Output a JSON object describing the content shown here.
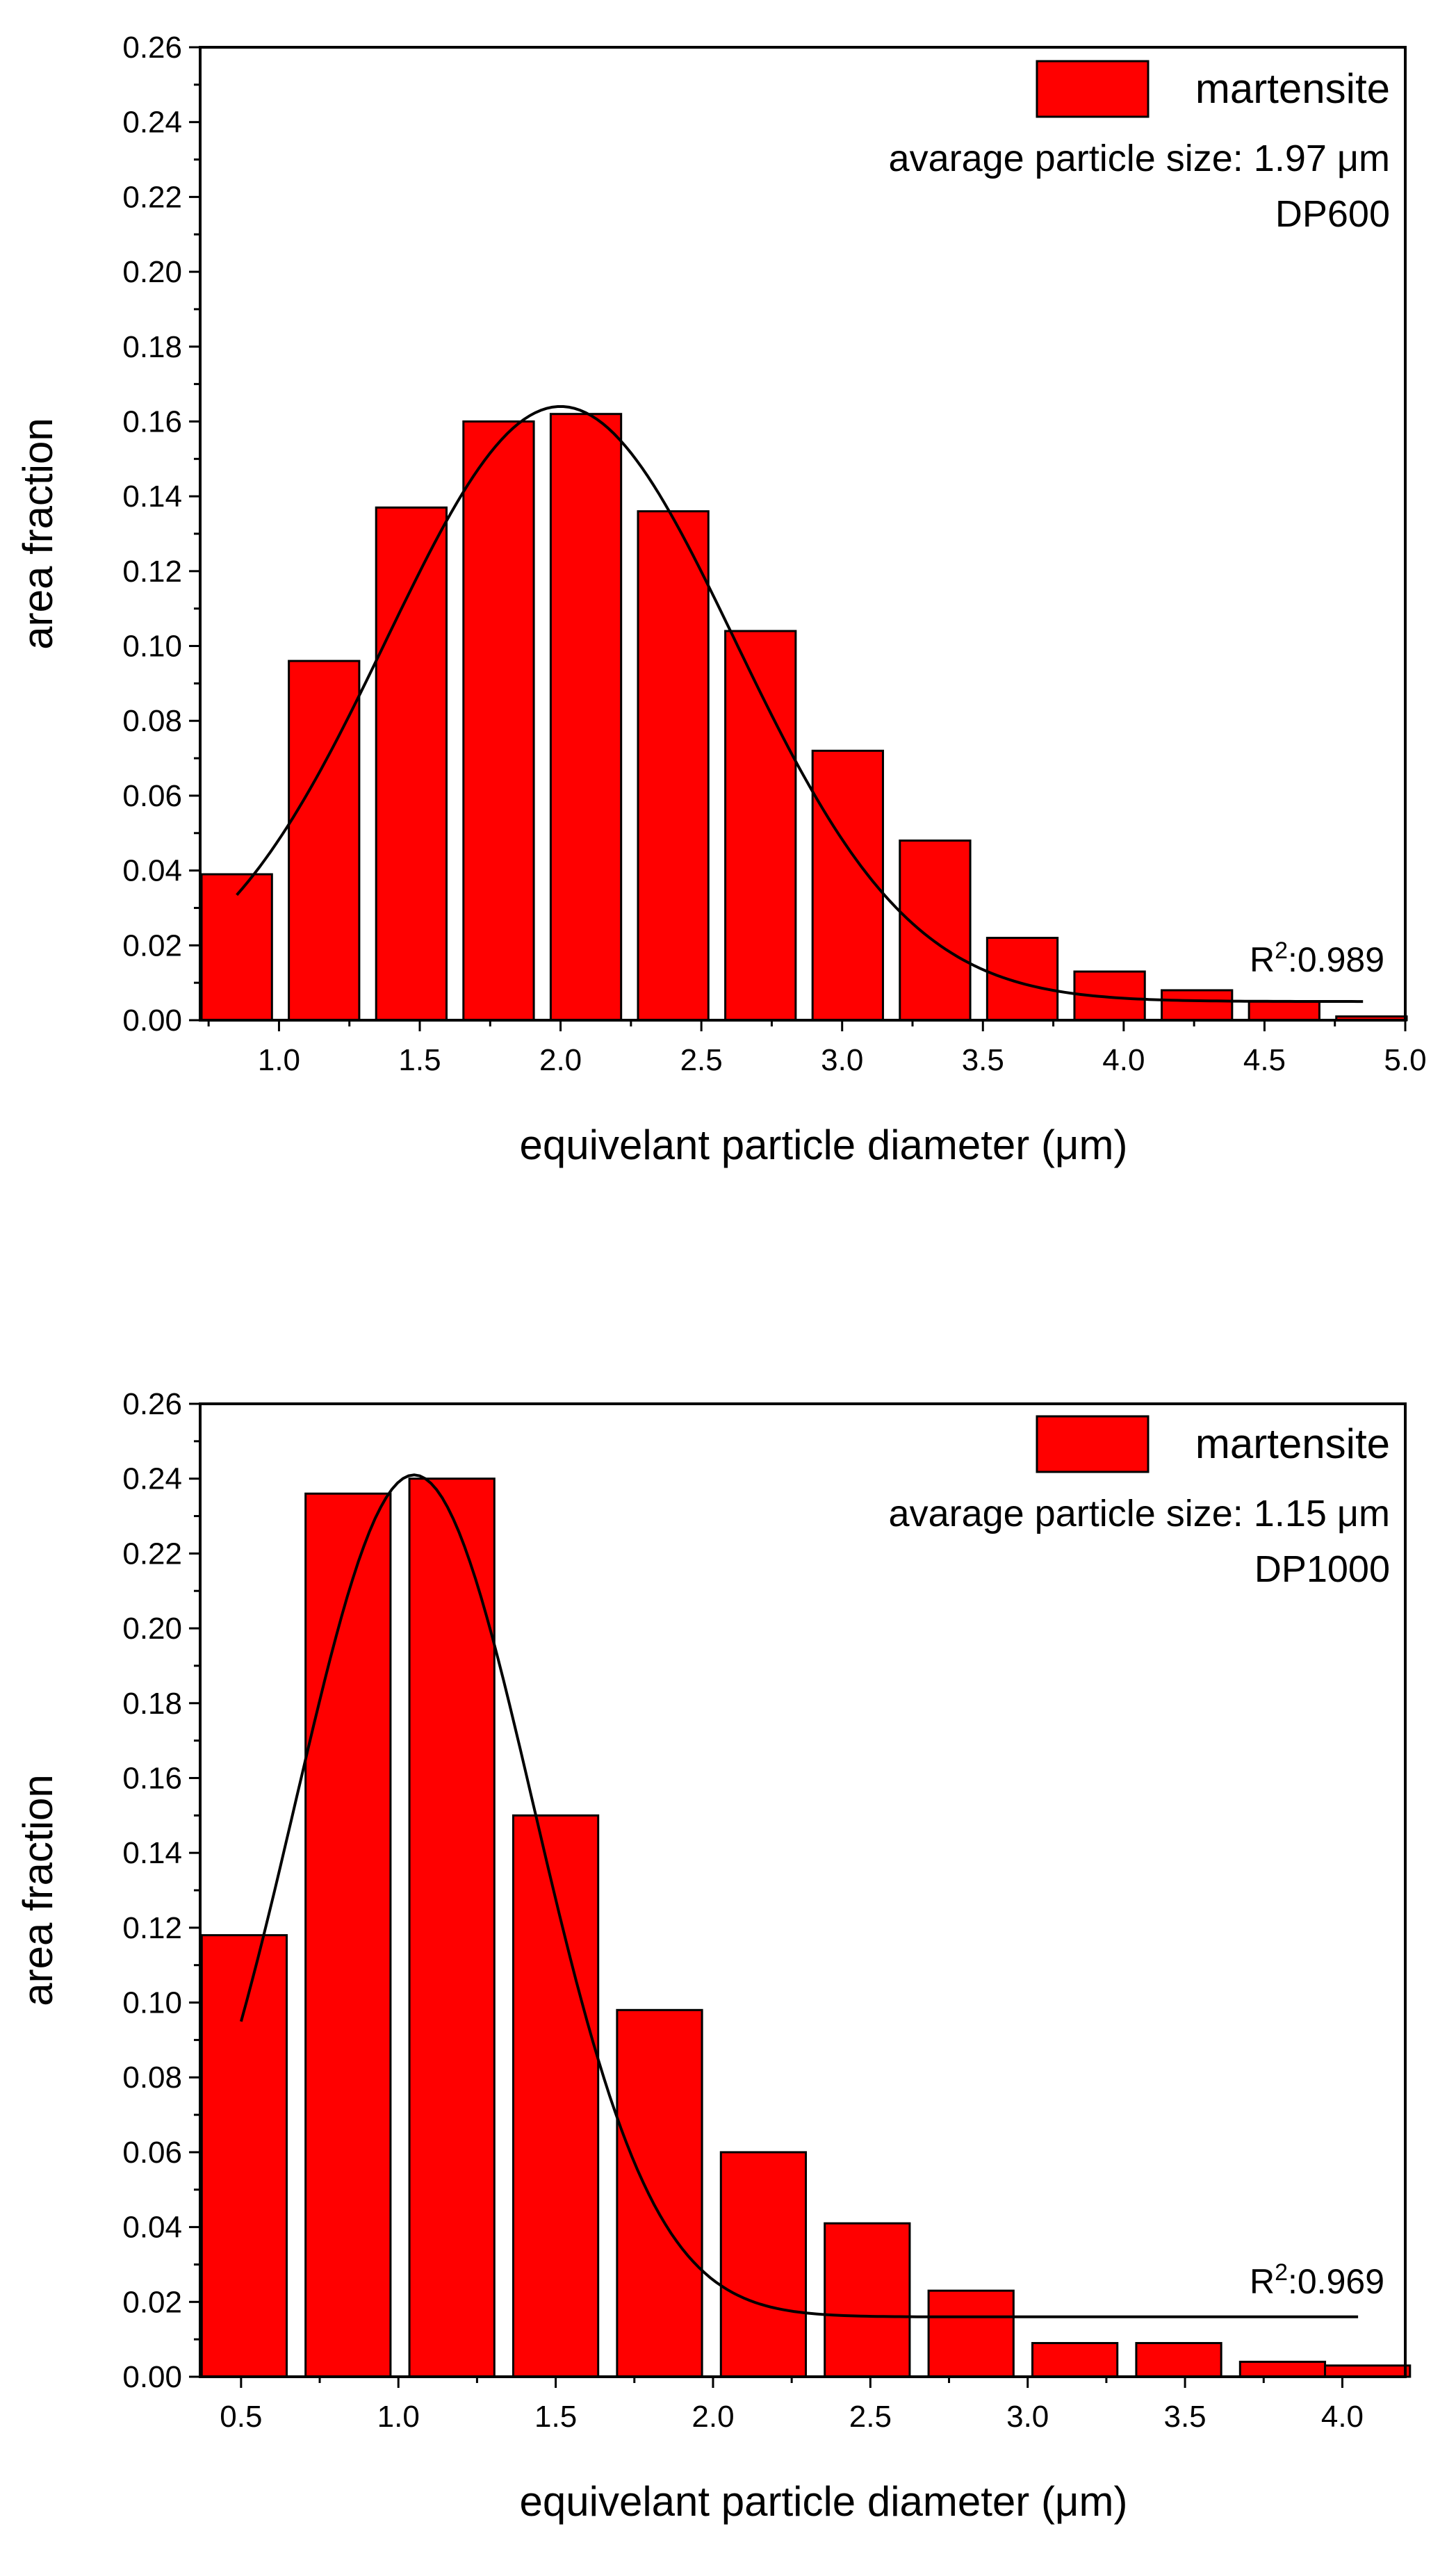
{
  "chart_data": [
    {
      "type": "bar",
      "title": "",
      "xlabel": "equivelant particle diameter (μm)",
      "ylabel": "area fraction",
      "xlim": [
        0.72,
        5.0
      ],
      "ylim": [
        0.0,
        0.26
      ],
      "xticks": [
        1.0,
        1.5,
        2.0,
        2.5,
        3.0,
        3.5,
        4.0,
        4.5,
        5.0
      ],
      "xtick_labels": [
        "1.0",
        "1.5",
        "2.0",
        "2.5",
        "3.0",
        "3.5",
        "4.0",
        "4.5",
        "5.0"
      ],
      "yticks": [
        0.0,
        0.02,
        0.04,
        0.06,
        0.08,
        0.1,
        0.12,
        0.14,
        0.16,
        0.18,
        0.2,
        0.22,
        0.24,
        0.26
      ],
      "ytick_labels": [
        "0.00",
        "0.02",
        "0.04",
        "0.06",
        "0.08",
        "0.10",
        "0.12",
        "0.14",
        "0.16",
        "0.18",
        "0.20",
        "0.22",
        "0.24",
        "0.26"
      ],
      "bar_width": 0.25,
      "x": [
        0.85,
        1.16,
        1.47,
        1.78,
        2.09,
        2.4,
        2.71,
        3.02,
        3.33,
        3.64,
        3.95,
        4.26,
        4.57,
        4.88
      ],
      "values": [
        0.039,
        0.096,
        0.137,
        0.16,
        0.162,
        0.136,
        0.104,
        0.072,
        0.048,
        0.022,
        0.013,
        0.008,
        0.005,
        0.001
      ],
      "series_name": "martensite",
      "bar_color": "#ff0000",
      "fit": {
        "type": "gaussian",
        "center": 2.0,
        "sigma": 0.62,
        "amplitude": 0.159,
        "offset": 0.005,
        "x_range": [
          0.85,
          4.85
        ]
      },
      "legend": {
        "label": "martensite",
        "position": "top-right"
      },
      "annotations": [
        "avarage particle size: 1.97 μm",
        "DP600"
      ],
      "r2_label": "R",
      "r2_superscript": "2",
      "r2_value": ":0.989"
    },
    {
      "type": "bar",
      "title": "",
      "xlabel": "equivelant particle diameter (μm)",
      "ylabel": "area fraction",
      "xlim": [
        0.37,
        4.2
      ],
      "ylim": [
        0.0,
        0.26
      ],
      "xticks": [
        0.5,
        1.0,
        1.5,
        2.0,
        2.5,
        3.0,
        3.5,
        4.0
      ],
      "xtick_labels": [
        "0.5",
        "1.0",
        "1.5",
        "2.0",
        "2.5",
        "3.0",
        "3.5",
        "4.0"
      ],
      "yticks": [
        0.0,
        0.02,
        0.04,
        0.06,
        0.08,
        0.1,
        0.12,
        0.14,
        0.16,
        0.18,
        0.2,
        0.22,
        0.24,
        0.26
      ],
      "ytick_labels": [
        "0.00",
        "0.02",
        "0.04",
        "0.06",
        "0.08",
        "0.10",
        "0.12",
        "0.14",
        "0.16",
        "0.18",
        "0.20",
        "0.22",
        "0.24",
        "0.26"
      ],
      "bar_width": 0.27,
      "x": [
        0.51,
        0.84,
        1.17,
        1.5,
        1.83,
        2.16,
        2.49,
        2.82,
        3.15,
        3.48,
        3.81,
        4.08
      ],
      "values": [
        0.118,
        0.236,
        0.24,
        0.15,
        0.098,
        0.06,
        0.041,
        0.023,
        0.009,
        0.009,
        0.004,
        0.003
      ],
      "series_name": "martensite",
      "bar_color": "#ff0000",
      "fit": {
        "type": "gaussian",
        "center": 1.05,
        "sigma": 0.38,
        "amplitude": 0.225,
        "offset": 0.016,
        "x_range": [
          0.5,
          4.05
        ]
      },
      "legend": {
        "label": "martensite",
        "position": "top-right"
      },
      "annotations": [
        "avarage particle size: 1.15 μm",
        "DP1000"
      ],
      "r2_label": "R",
      "r2_superscript": "2",
      "r2_value": ":0.969"
    }
  ]
}
